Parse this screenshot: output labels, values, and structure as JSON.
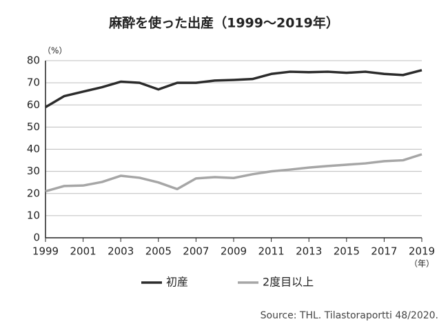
{
  "chart_data": {
    "type": "line",
    "title": "麻酔を使った出産（1999〜2019年）",
    "y_unit": "（%）",
    "x_unit": "（年）",
    "source": "Source: THL. Tilastoraportti 48/2020.",
    "x": [
      1999,
      2000,
      2001,
      2002,
      2003,
      2004,
      2005,
      2006,
      2007,
      2008,
      2009,
      2010,
      2011,
      2012,
      2013,
      2014,
      2015,
      2016,
      2017,
      2018,
      2019
    ],
    "series": [
      {
        "name": "初産",
        "color": "#2b2b2b",
        "values": [
          59,
          64,
          66,
          68,
          70.5,
          70,
          67,
          70,
          70,
          71,
          71.3,
          71.7,
          74,
          75,
          74.8,
          75,
          74.5,
          75,
          74,
          73.5,
          75.7
        ]
      },
      {
        "name": "2度目以上",
        "color": "#a6a6a6",
        "values": [
          21,
          23.4,
          23.6,
          25.2,
          28,
          27.1,
          25,
          22,
          26.8,
          27.4,
          27,
          28.7,
          30,
          30.8,
          31.7,
          32.4,
          33,
          33.6,
          34.6,
          35,
          37.7
        ]
      }
    ],
    "xlim": [
      1999,
      2019
    ],
    "xticks": [
      1999,
      2001,
      2003,
      2005,
      2007,
      2009,
      2011,
      2013,
      2015,
      2017,
      2019
    ],
    "ylim": [
      0,
      80
    ],
    "yticks": [
      0,
      10,
      20,
      30,
      40,
      50,
      60,
      70,
      80
    ],
    "grid": true
  }
}
